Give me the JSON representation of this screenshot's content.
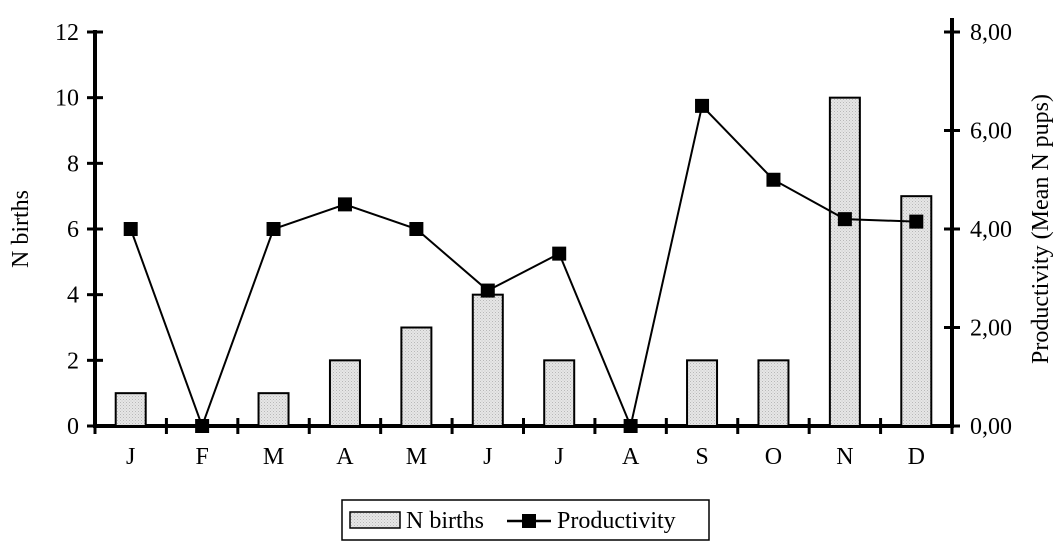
{
  "chart_data": {
    "type": "bar",
    "categories": [
      "J",
      "F",
      "M",
      "A",
      "M",
      "J",
      "J",
      "A",
      "S",
      "O",
      "N",
      "D"
    ],
    "series": [
      {
        "name": "N births",
        "type": "bar",
        "axis": "left",
        "values": [
          1,
          0,
          1,
          2,
          3,
          4,
          2,
          0,
          2,
          2,
          10,
          7
        ]
      },
      {
        "name": "Productivity",
        "type": "line",
        "axis": "right",
        "values": [
          4.0,
          0.0,
          4.0,
          4.5,
          4.0,
          2.75,
          3.5,
          0.0,
          6.5,
          5.0,
          4.2,
          4.15
        ]
      }
    ],
    "ylabel": "N births",
    "ylabel_right": "Productivity (Mean N pups)",
    "ylim": [
      0,
      12
    ],
    "ylim_right": [
      0,
      8
    ],
    "yticks": [
      "0",
      "2",
      "4",
      "6",
      "8",
      "10",
      "12"
    ],
    "yticks_right": [
      "0,00",
      "2,00",
      "4,00",
      "6,00",
      "8,00"
    ],
    "grid": false,
    "legend_position": "bottom-center",
    "bar_fill": "#d9d9d9",
    "line_color": "#000000"
  }
}
